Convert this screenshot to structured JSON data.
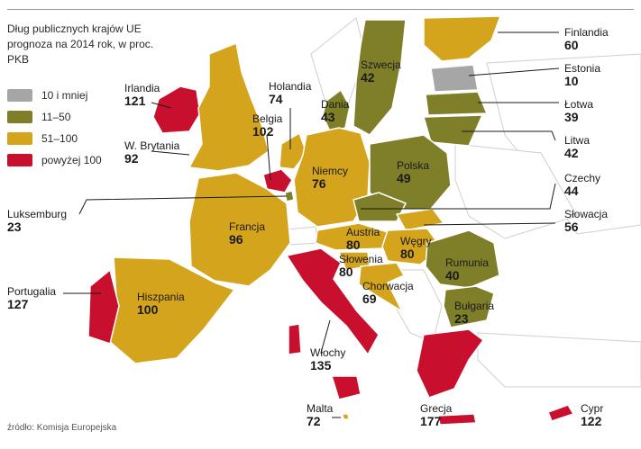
{
  "title": "Dług publicznych krajów UE prognoza na 2014 rok, w proc. PKB",
  "source": "źródło: Komisja Europejska",
  "legend": [
    {
      "label": "10 i mniej",
      "color": "#a6a6a6"
    },
    {
      "label": "11–50",
      "color": "#7f7f2a"
    },
    {
      "label": "51–100",
      "color": "#d4a41c"
    },
    {
      "label": "powyżej 100",
      "color": "#c8102e"
    }
  ],
  "countries": {
    "finlandia": {
      "name": "Finlandia",
      "value": "60"
    },
    "szwecja": {
      "name": "Szwecja",
      "value": "42"
    },
    "estonia": {
      "name": "Estonia",
      "value": "10"
    },
    "lotwa": {
      "name": "Łotwa",
      "value": "39"
    },
    "litwa": {
      "name": "Litwa",
      "value": "42"
    },
    "dania": {
      "name": "Dania",
      "value": "43"
    },
    "irlandia": {
      "name": "Irlandia",
      "value": "121"
    },
    "holandia": {
      "name": "Holandia",
      "value": "74"
    },
    "belgia": {
      "name": "Belgia",
      "value": "102"
    },
    "wbrytania": {
      "name": "W. Brytania",
      "value": "92"
    },
    "niemcy": {
      "name": "Niemcy",
      "value": "76"
    },
    "polska": {
      "name": "Polska",
      "value": "49"
    },
    "czechy": {
      "name": "Czechy",
      "value": "44"
    },
    "slowacja": {
      "name": "Słowacja",
      "value": "56"
    },
    "luksemburg": {
      "name": "Luksemburg",
      "value": "23"
    },
    "francja": {
      "name": "Francja",
      "value": "96"
    },
    "austria": {
      "name": "Austria",
      "value": "80"
    },
    "wegry": {
      "name": "Węgry",
      "value": "80"
    },
    "slowenia": {
      "name": "Słowenia",
      "value": "80"
    },
    "rumunia": {
      "name": "Rumunia",
      "value": "40"
    },
    "portugalia": {
      "name": "Portugalia",
      "value": "127"
    },
    "hiszpania": {
      "name": "Hiszpania",
      "value": "100"
    },
    "chorwacja": {
      "name": "Chorwacja",
      "value": "69"
    },
    "bulgaria": {
      "name": "Bułgaria",
      "value": "23"
    },
    "wlochy": {
      "name": "Włochy",
      "value": "135"
    },
    "malta": {
      "name": "Malta",
      "value": "72"
    },
    "grecja": {
      "name": "Grecja",
      "value": "177"
    },
    "cypr": {
      "name": "Cypr",
      "value": "122"
    }
  }
}
